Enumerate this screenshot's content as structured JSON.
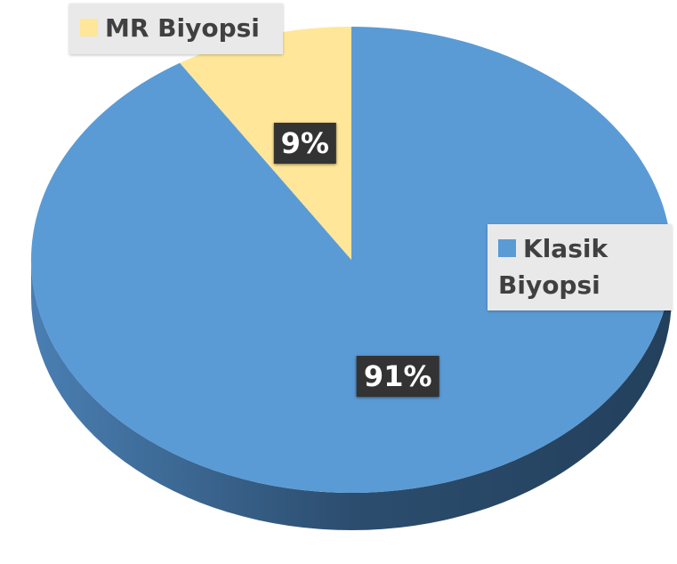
{
  "chart_data": {
    "type": "pie",
    "categories": [
      "Klasik Biyopsi",
      "MR Biyopsi"
    ],
    "values": [
      91,
      9
    ],
    "value_labels": [
      "91%",
      "9%"
    ],
    "colors": [
      "#5b9bd5",
      "#ffe699"
    ]
  }
}
